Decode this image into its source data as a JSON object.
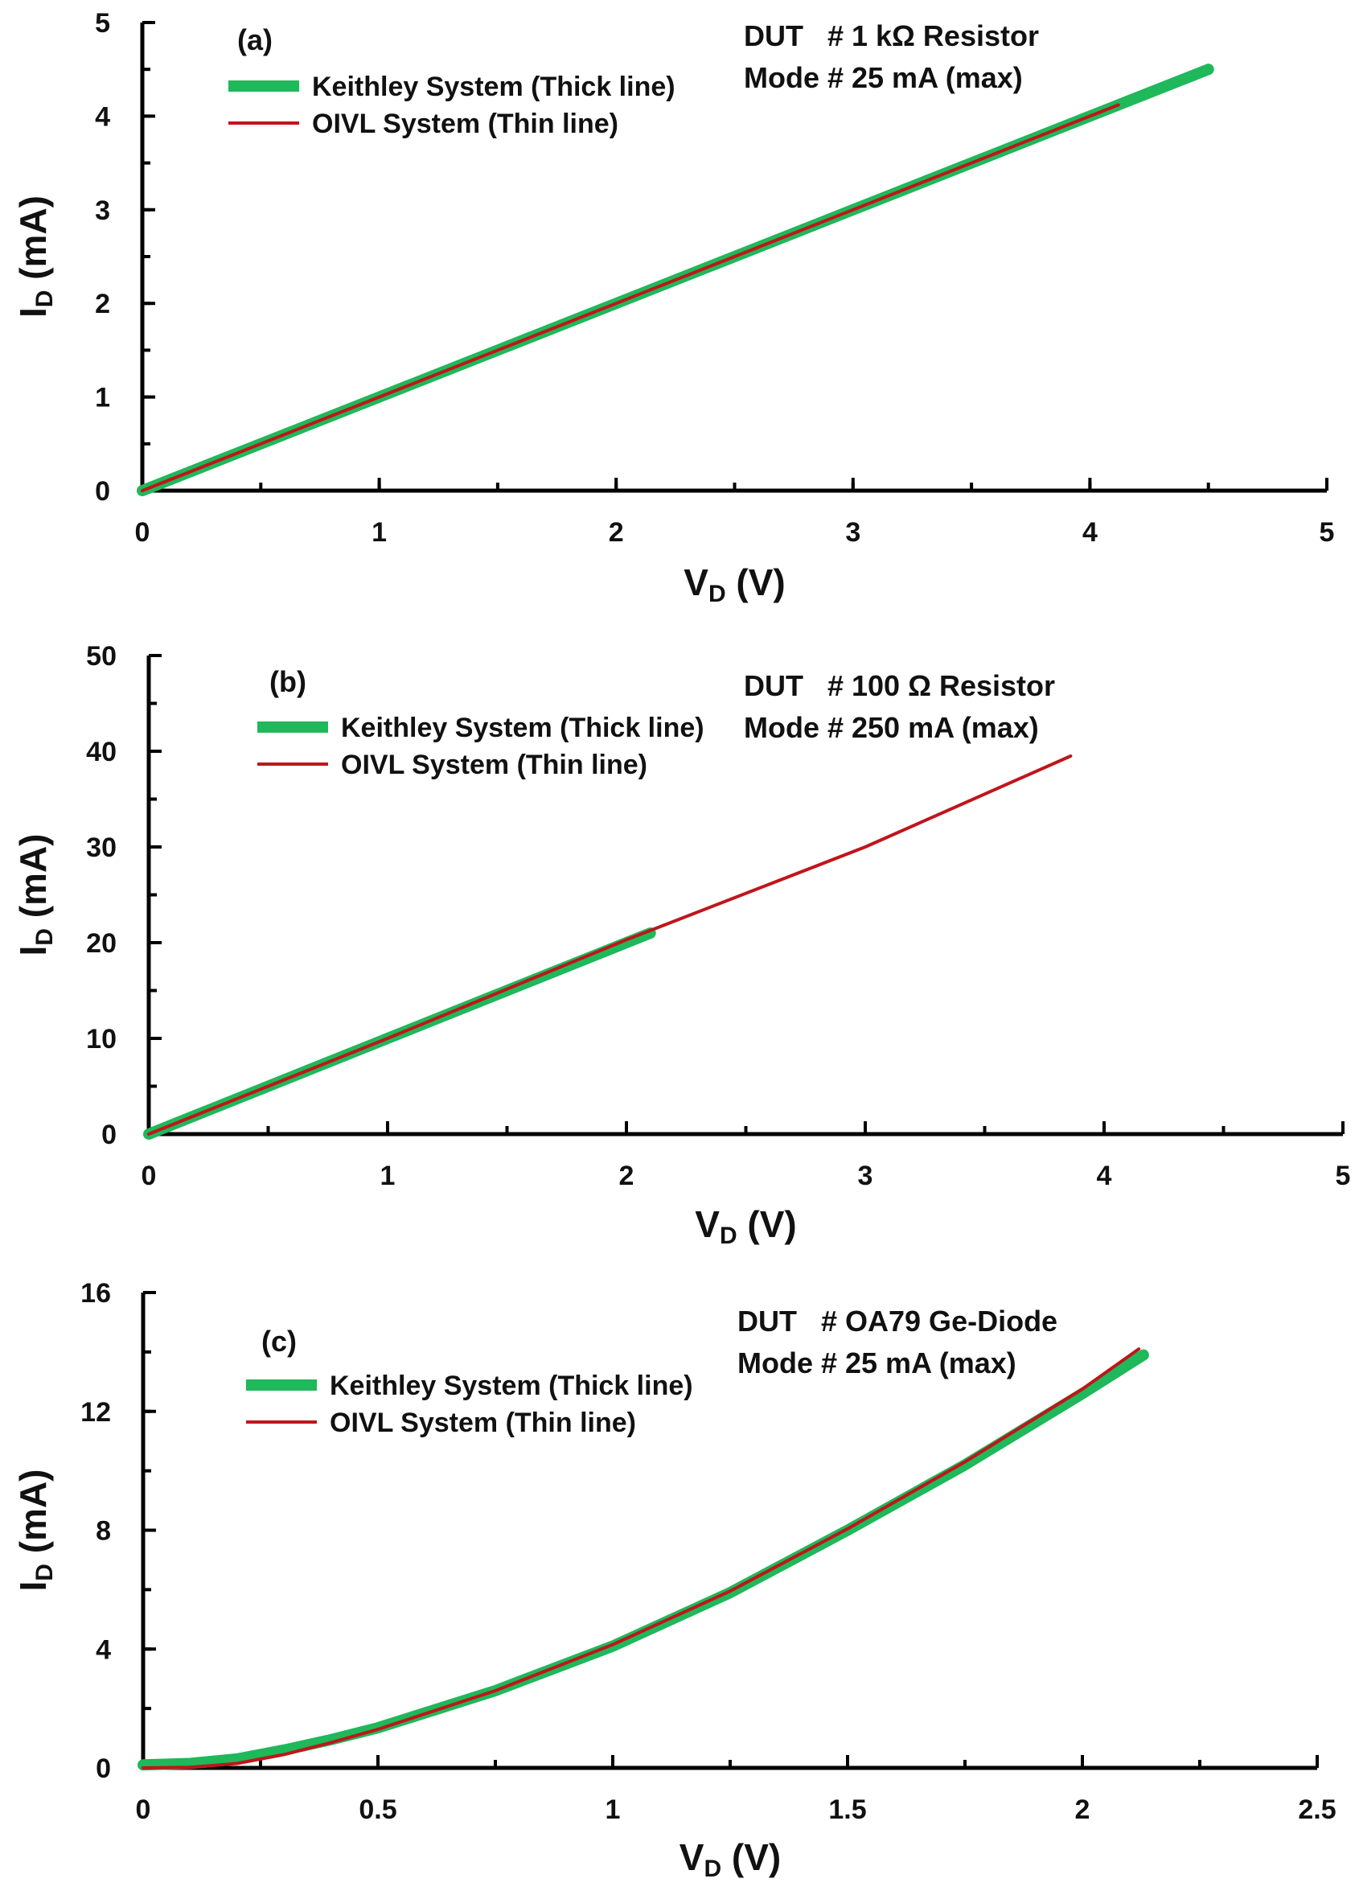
{
  "colors": {
    "keithley": "#1fb85a",
    "oivl": "#c0151b",
    "axis": "#000000"
  },
  "chart_data": [
    {
      "type": "line",
      "panel": "(a)",
      "info_lines": [
        "DUT   # 1 kΩ Resistor",
        "Mode # 25 mA (max)"
      ],
      "xlabel_main": "V",
      "xlabel_sub": "D",
      "xlabel_unit": " (V)",
      "ylabel_main": "I",
      "ylabel_sub": "D",
      "ylabel_unit": " (mA)",
      "xlim": [
        0,
        5
      ],
      "ylim": [
        0,
        5
      ],
      "xticks": [
        0,
        1,
        2,
        3,
        4,
        5
      ],
      "xtick_labels": [
        "0",
        "1",
        "2",
        "3",
        "4",
        "5"
      ],
      "yticks": [
        0,
        1,
        2,
        3,
        4,
        5
      ],
      "ytick_labels": [
        "0",
        "1",
        "2",
        "3",
        "4",
        "5"
      ],
      "x_minor_step": 0.5,
      "y_minor_step": 0.5,
      "legend": "top-left",
      "grid": false,
      "series": [
        {
          "name": "Keithley System (Thick line)",
          "style": "thick",
          "x": [
            0,
            1,
            2,
            3,
            4,
            4.5
          ],
          "y": [
            0,
            1.0,
            2.0,
            3.0,
            4.0,
            4.5
          ]
        },
        {
          "name": "OIVL System (Thin line)",
          "style": "thin",
          "x": [
            0,
            1,
            2,
            3,
            4,
            4.12
          ],
          "y": [
            0,
            1.0,
            2.0,
            3.0,
            4.0,
            4.12
          ]
        }
      ]
    },
    {
      "type": "line",
      "panel": "(b)",
      "info_lines": [
        "DUT   # 100 Ω Resistor",
        "Mode # 250 mA (max)"
      ],
      "xlabel_main": "V",
      "xlabel_sub": "D",
      "xlabel_unit": " (V)",
      "ylabel_main": "I",
      "ylabel_sub": "D",
      "ylabel_unit": " (mA)",
      "xlim": [
        0,
        5
      ],
      "ylim": [
        0,
        50
      ],
      "xticks": [
        0,
        1,
        2,
        3,
        4,
        5
      ],
      "xtick_labels": [
        "0",
        "1",
        "2",
        "3",
        "4",
        "5"
      ],
      "yticks": [
        0,
        10,
        20,
        30,
        40,
        50
      ],
      "ytick_labels": [
        "0",
        "10",
        "20",
        "30",
        "40",
        "50"
      ],
      "x_minor_step": 0.5,
      "y_minor_step": 5,
      "legend": "top-left",
      "grid": false,
      "series": [
        {
          "name": "Keithley System (Thick line)",
          "style": "thick",
          "x": [
            0,
            1,
            2,
            2.1
          ],
          "y": [
            0,
            10.0,
            20.0,
            21.0
          ]
        },
        {
          "name": "OIVL System (Thin line)",
          "style": "thin",
          "x": [
            0,
            1,
            2,
            3,
            3.86
          ],
          "y": [
            0,
            10.0,
            20.3,
            30.0,
            39.5
          ]
        }
      ]
    },
    {
      "type": "line",
      "panel": "(c)",
      "info_lines": [
        "DUT   # OA79 Ge-Diode",
        "Mode # 25 mA (max)"
      ],
      "xlabel_main": "V",
      "xlabel_sub": "D",
      "xlabel_unit": " (V)",
      "ylabel_main": "I",
      "ylabel_sub": "D",
      "ylabel_unit": " (mA)",
      "xlim": [
        0,
        2.5
      ],
      "ylim": [
        0,
        16
      ],
      "xticks": [
        0,
        0.5,
        1,
        1.5,
        2,
        2.5
      ],
      "xtick_labels": [
        "0",
        "0.5",
        "1",
        "1.5",
        "2",
        "2.5"
      ],
      "yticks": [
        0,
        4,
        8,
        12,
        16
      ],
      "ytick_labels": [
        "0",
        "4",
        "8",
        "12",
        "16"
      ],
      "x_minor_step": 0.25,
      "y_minor_step": 2,
      "legend": "top-left",
      "grid": false,
      "series": [
        {
          "name": "Keithley System (Thick line)",
          "style": "thick",
          "x": [
            0,
            0.1,
            0.2,
            0.3,
            0.4,
            0.5,
            0.75,
            1.0,
            1.25,
            1.5,
            1.75,
            2.0,
            2.13
          ],
          "y": [
            0.1,
            0.15,
            0.3,
            0.6,
            0.95,
            1.35,
            2.6,
            4.1,
            5.9,
            8.0,
            10.2,
            12.6,
            13.9
          ]
        },
        {
          "name": "OIVL System (Thin line)",
          "style": "thin",
          "x": [
            0,
            0.1,
            0.2,
            0.3,
            0.4,
            0.5,
            0.75,
            1.0,
            1.25,
            1.5,
            1.75,
            2.0,
            2.12
          ],
          "y": [
            0.0,
            0.02,
            0.15,
            0.45,
            0.85,
            1.3,
            2.6,
            4.15,
            5.95,
            8.05,
            10.3,
            12.75,
            14.1
          ]
        }
      ]
    }
  ]
}
